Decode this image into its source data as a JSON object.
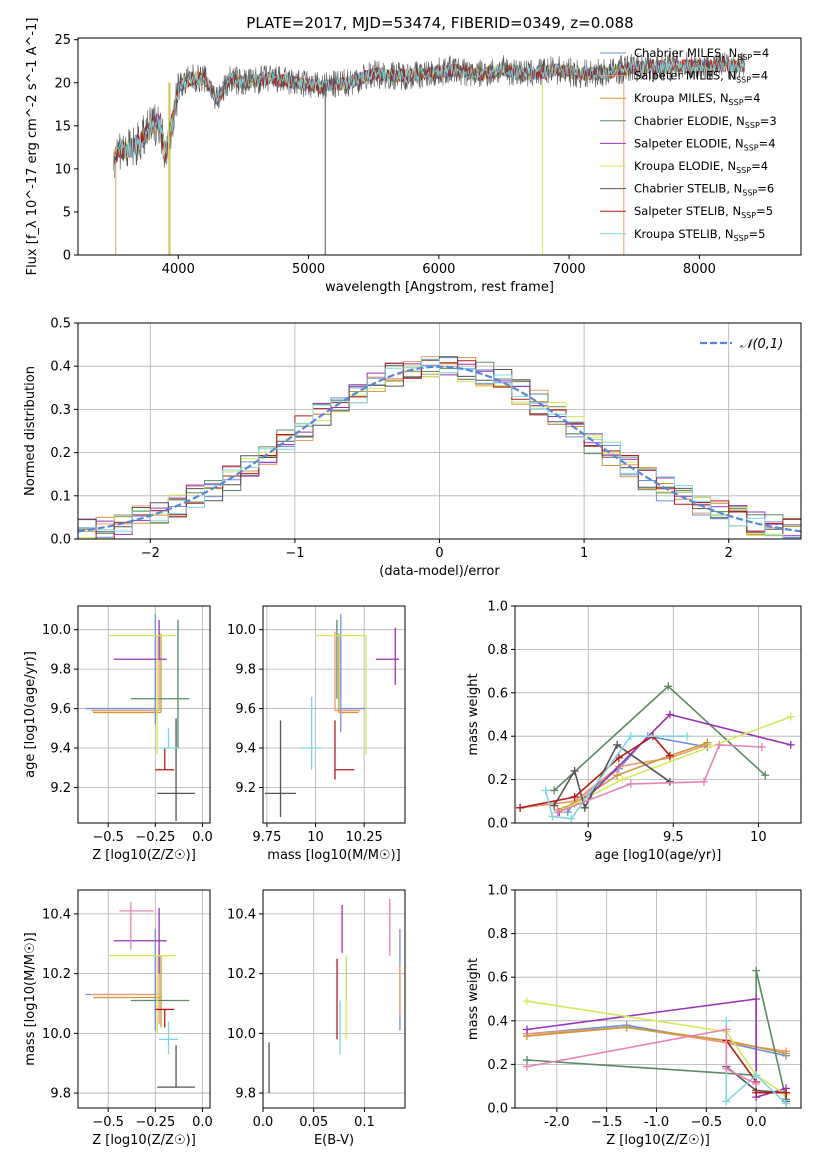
{
  "figure_title": "PLATE=2017, MJD=53474, FIBERID=0349, z=0.088",
  "models": [
    {
      "name": "Chabrier MILES",
      "nssp": "4",
      "color": "#6f8fdc"
    },
    {
      "name": "Salpeter MILES",
      "nssp": "4",
      "color": "#f29a6f"
    },
    {
      "name": "Kroupa MILES",
      "nssp": "4",
      "color": "#c99a3a"
    },
    {
      "name": "Chabrier ELODIE",
      "nssp": "3",
      "color": "#5a8a64"
    },
    {
      "name": "Salpeter ELODIE",
      "nssp": "4",
      "color": "#9b30b8"
    },
    {
      "name": "Kroupa ELODIE",
      "nssp": "4",
      "color": "#d6e85a"
    },
    {
      "name": "Chabrier STELIB",
      "nssp": "6",
      "color": "#555555"
    },
    {
      "name": "Salpeter STELIB",
      "nssp": "5",
      "color": "#b11c1c"
    },
    {
      "name": "Kroupa STELIB",
      "nssp": "5",
      "color": "#7fd6dd"
    }
  ],
  "chart_data": [
    {
      "id": "spectrum",
      "type": "line",
      "xlabel": "wavelength [Angstrom, rest frame]",
      "ylabel": "Flux [f_λ 10^-17 erg cm^-2 s^-1 A^-1]",
      "xlim": [
        3230,
        8780
      ],
      "ylim": [
        0,
        25.2
      ],
      "xticks": [
        4000,
        5000,
        6000,
        7000,
        8000
      ],
      "yticks": [
        0,
        5,
        10,
        15,
        20,
        25
      ],
      "grid": false,
      "legend": "right",
      "series_note": "one spectrum curve per model; values approximated",
      "envelope": {
        "wavelength": [
          3500,
          3550,
          3600,
          3700,
          3800,
          3850,
          3900,
          3950,
          4000,
          4100,
          4200,
          4300,
          4400,
          4500,
          4700,
          4900,
          5100,
          5300,
          5500,
          5700,
          5900,
          6100,
          6300,
          6500,
          6700,
          6900,
          7100,
          7300,
          7500,
          8100
        ],
        "flux": [
          11,
          12.5,
          12,
          13,
          15,
          15.5,
          12,
          15,
          19.5,
          20.5,
          20.5,
          18,
          20.5,
          20,
          20.5,
          20,
          19.5,
          20,
          21,
          20.8,
          21,
          21.5,
          21,
          21.5,
          21,
          21.5,
          21,
          21.2,
          21.8,
          22
        ]
      }
    },
    {
      "id": "residuals",
      "type": "line",
      "xlabel": "(data-model)/error",
      "ylabel": "Normed distribution",
      "xlim": [
        -2.5,
        2.5
      ],
      "ylim": [
        0,
        0.5
      ],
      "xticks": [
        -2,
        -1,
        0,
        1,
        2
      ],
      "yticks": [
        0.0,
        0.1,
        0.2,
        0.3,
        0.4,
        0.5
      ],
      "grid": true,
      "legend": "top-right",
      "reference": {
        "name": "𝒩(0,1)",
        "mean": 0,
        "sigma": 1,
        "color": "#5588d8"
      }
    },
    {
      "id": "age-vs-Z",
      "type": "scatter",
      "xlabel": "Z [log10(Z/Z☉)]",
      "ylabel": "age [log10(age/yr)]",
      "xlim": [
        -0.66,
        0.04
      ],
      "ylim": [
        9.02,
        10.12
      ],
      "xticks": [
        -0.5,
        -0.25,
        0.0
      ],
      "yticks": [
        9.2,
        9.4,
        9.6,
        9.8,
        10.0
      ],
      "grid": true,
      "points": [
        {
          "model": 0,
          "x": -0.25,
          "y": 9.6,
          "xerr": [
            0.37,
            0.0
          ],
          "yerr": [
            0.08,
            0.48
          ]
        },
        {
          "model": 1,
          "x": -0.23,
          "y": 9.59,
          "xerr": [
            0.36,
            0.0
          ],
          "yerr": [
            0.0,
            0.4
          ]
        },
        {
          "model": 2,
          "x": -0.22,
          "y": 9.58,
          "xerr": [
            0.36,
            0.0
          ],
          "yerr": [
            0.0,
            0.4
          ]
        },
        {
          "model": 3,
          "x": -0.13,
          "y": 9.65,
          "xerr": [
            0.25,
            0.06
          ],
          "yerr": [
            0.25,
            0.4
          ]
        },
        {
          "model": 4,
          "x": -0.23,
          "y": 9.85,
          "xerr": [
            0.24,
            0.04
          ],
          "yerr": [
            0.0,
            0.2
          ]
        },
        {
          "model": 5,
          "x": -0.24,
          "y": 9.97,
          "xerr": [
            0.26,
            0.1
          ],
          "yerr": [
            0.6,
            0.0
          ]
        },
        {
          "model": 6,
          "x": -0.14,
          "y": 9.17,
          "xerr": [
            0.1,
            0.1
          ],
          "yerr": [
            0.14,
            0.38
          ]
        },
        {
          "model": 7,
          "x": -0.2,
          "y": 9.29,
          "xerr": [
            0.05,
            0.05
          ],
          "yerr": [
            0.0,
            0.11
          ]
        },
        {
          "model": 8,
          "x": -0.18,
          "y": 9.4,
          "xerr": [
            0.05,
            0.05
          ],
          "yerr": [
            0.0,
            0.1
          ]
        }
      ]
    },
    {
      "id": "age-vs-mass",
      "type": "scatter",
      "xlabel": "mass [log10(M/M☉)]",
      "ylabel": "",
      "xlim": [
        9.73,
        10.46
      ],
      "ylim": [
        9.02,
        10.12
      ],
      "xticks": [
        9.75,
        10.0,
        10.25
      ],
      "yticks": [
        9.2,
        9.4,
        9.6,
        9.8,
        10.0
      ],
      "grid": true,
      "points": [
        {
          "model": 0,
          "x": 10.13,
          "y": 9.6,
          "xerr": [
            0.0,
            0.13
          ],
          "yerr": [
            0.12,
            0.48
          ]
        },
        {
          "model": 1,
          "x": 10.1,
          "y": 9.59,
          "xerr": [
            0.0,
            0.13
          ],
          "yerr": [
            0.0,
            0.4
          ]
        },
        {
          "model": 2,
          "x": 10.12,
          "y": 9.58,
          "xerr": [
            0.0,
            0.1
          ],
          "yerr": [
            0.0,
            0.4
          ]
        },
        {
          "model": 3,
          "x": 10.11,
          "y": 9.65,
          "xerr": [
            0.0,
            0.0
          ],
          "yerr": [
            0.0,
            0.4
          ]
        },
        {
          "model": 4,
          "x": 10.41,
          "y": 9.85,
          "xerr": [
            0.1,
            0.02
          ],
          "yerr": [
            0.13,
            0.16
          ]
        },
        {
          "model": 5,
          "x": 10.26,
          "y": 9.97,
          "xerr": [
            0.26,
            0.0
          ],
          "yerr": [
            0.6,
            0.0
          ]
        },
        {
          "model": 6,
          "x": 9.82,
          "y": 9.17,
          "xerr": [
            0.08,
            0.08
          ],
          "yerr": [
            0.12,
            0.37
          ]
        },
        {
          "model": 7,
          "x": 10.1,
          "y": 9.29,
          "xerr": [
            0.0,
            0.1
          ],
          "yerr": [
            0.05,
            0.25
          ]
        },
        {
          "model": 8,
          "x": 9.98,
          "y": 9.4,
          "xerr": [
            0.06,
            0.05
          ],
          "yerr": [
            0.11,
            0.26
          ]
        }
      ]
    },
    {
      "id": "weight-vs-age",
      "type": "line",
      "xlabel": "age [log10(age/yr)]",
      "ylabel": "mass weight",
      "xlim": [
        8.57,
        10.25
      ],
      "ylim": [
        0,
        1.0
      ],
      "xticks": [
        9.0,
        9.5,
        10.0
      ],
      "yticks": [
        0.0,
        0.2,
        0.4,
        0.6,
        0.8,
        1.0
      ],
      "grid": true,
      "series": [
        {
          "model": 0,
          "x": [
            8.88,
            8.92,
            9.18,
            9.35,
            9.7
          ],
          "y": [
            0.05,
            0.1,
            0.25,
            0.4,
            0.35
          ]
        },
        {
          "model": 1,
          "x": [
            8.6,
            8.92,
            9.18,
            9.48,
            9.7
          ],
          "y": [
            0.07,
            0.1,
            0.26,
            0.3,
            0.36
          ]
        },
        {
          "model": 2,
          "x": [
            8.82,
            8.92,
            9.17,
            9.48,
            9.7
          ],
          "y": [
            0.06,
            0.09,
            0.22,
            0.31,
            0.37
          ]
        },
        {
          "model": 3,
          "x": [
            8.8,
            9.47,
            10.04
          ],
          "y": [
            0.15,
            0.63,
            0.22
          ]
        },
        {
          "model": 4,
          "x": [
            8.83,
            9.0,
            9.48,
            10.19
          ],
          "y": [
            0.05,
            0.12,
            0.5,
            0.36
          ]
        },
        {
          "model": 5,
          "x": [
            8.85,
            9.2,
            10.19
          ],
          "y": [
            0.06,
            0.2,
            0.49
          ]
        },
        {
          "model": 6,
          "x": [
            8.8,
            8.92,
            8.98,
            9.17,
            9.48
          ],
          "y": [
            0.08,
            0.24,
            0.07,
            0.36,
            0.19
          ]
        },
        {
          "model": 7,
          "x": [
            8.6,
            8.92,
            9.18,
            9.38,
            9.48
          ],
          "y": [
            0.07,
            0.12,
            0.3,
            0.4,
            0.31
          ]
        },
        {
          "model": 8,
          "x": [
            8.75,
            8.79,
            8.9,
            9.25,
            9.58
          ],
          "y": [
            0.15,
            0.03,
            0.02,
            0.4,
            0.4
          ]
        },
        {
          "model": 1,
          "x": [
            8.82,
            9.25,
            9.68,
            9.77,
            10.02
          ],
          "y": [
            0.05,
            0.18,
            0.19,
            0.36,
            0.35
          ],
          "colorOverride": "#e583b8"
        }
      ]
    },
    {
      "id": "mass-vs-Z",
      "type": "scatter",
      "xlabel": "Z [log10(Z/Z☉)]",
      "ylabel": "mass [log10(M/M☉)]",
      "xlim": [
        -0.66,
        0.04
      ],
      "ylim": [
        9.75,
        10.48
      ],
      "xticks": [
        -0.5,
        -0.25,
        0.0
      ],
      "yticks": [
        9.8,
        10.0,
        10.2,
        10.4
      ],
      "grid": true,
      "points": [
        {
          "model": 0,
          "x": -0.25,
          "y": 10.13,
          "xerr": [
            0.37,
            0.0
          ],
          "yerr": [
            0.12,
            0.22
          ]
        },
        {
          "model": 1,
          "x": -0.23,
          "y": 10.13,
          "xerr": [
            0.36,
            0.0
          ],
          "yerr": [
            0.1,
            0.15
          ]
        },
        {
          "model": 2,
          "x": -0.22,
          "y": 10.12,
          "xerr": [
            0.36,
            0.0
          ],
          "yerr": [
            0.1,
            0.14
          ]
        },
        {
          "model": 3,
          "x": -0.13,
          "y": 10.11,
          "xerr": [
            0.25,
            0.06
          ],
          "yerr": [
            0.0,
            0.0
          ]
        },
        {
          "model": 4,
          "x": -0.23,
          "y": 10.31,
          "xerr": [
            0.24,
            0.04
          ],
          "yerr": [
            0.11,
            0.11
          ]
        },
        {
          "model": 5,
          "x": -0.24,
          "y": 10.26,
          "xerr": [
            0.26,
            0.1
          ],
          "yerr": [
            0.26,
            0.0
          ]
        },
        {
          "model": 6,
          "x": -0.14,
          "y": 9.82,
          "xerr": [
            0.1,
            0.1
          ],
          "yerr": [
            0.0,
            0.14
          ]
        },
        {
          "model": 7,
          "x": -0.2,
          "y": 10.08,
          "xerr": [
            0.05,
            0.05
          ],
          "yerr": [
            0.06,
            0.0
          ]
        },
        {
          "model": 8,
          "x": -0.18,
          "y": 9.98,
          "xerr": [
            0.05,
            0.05
          ],
          "yerr": [
            0.05,
            0.06
          ]
        },
        {
          "model": 1,
          "x": -0.38,
          "y": 10.41,
          "xerr": [
            0.06,
            0.12
          ],
          "yerr": [
            0.13,
            0.03
          ],
          "colorOverride": "#e583b8"
        }
      ]
    },
    {
      "id": "mass-vs-ebv",
      "type": "scatter",
      "xlabel": "E(B-V)",
      "ylabel": "",
      "xlim": [
        0.0,
        0.14
      ],
      "ylim": [
        9.75,
        10.48
      ],
      "xticks": [
        0.0,
        0.05,
        0.1
      ],
      "yticks": [
        9.8,
        10.0,
        10.2,
        10.4
      ],
      "grid": true,
      "points": [
        {
          "model": 0,
          "x": 0.135,
          "y": 10.13,
          "xerr": [
            0,
            0
          ],
          "yerr": [
            0.12,
            0.22
          ]
        },
        {
          "model": 1,
          "x": 0.135,
          "y": 10.13,
          "xerr": [
            0,
            0
          ],
          "yerr": [
            0.07,
            0.1
          ]
        },
        {
          "model": 2,
          "x": 0.135,
          "y": 10.12,
          "xerr": [
            0,
            0
          ],
          "yerr": [
            0.0,
            0.0
          ]
        },
        {
          "model": 3,
          "x": 0.082,
          "y": 10.11,
          "xerr": [
            0,
            0
          ],
          "yerr": [
            0.0,
            0.14
          ]
        },
        {
          "model": 4,
          "x": 0.078,
          "y": 10.31,
          "xerr": [
            0,
            0
          ],
          "yerr": [
            0.04,
            0.12
          ]
        },
        {
          "model": 5,
          "x": 0.082,
          "y": 10.12,
          "xerr": [
            0,
            0
          ],
          "yerr": [
            0.14,
            0.14
          ]
        },
        {
          "model": 6,
          "x": 0.006,
          "y": 9.82,
          "xerr": [
            0,
            0
          ],
          "yerr": [
            0.02,
            0.15
          ]
        },
        {
          "model": 7,
          "x": 0.073,
          "y": 10.08,
          "xerr": [
            0,
            0
          ],
          "yerr": [
            0.1,
            0.17
          ]
        },
        {
          "model": 8,
          "x": 0.076,
          "y": 9.98,
          "xerr": [
            0,
            0
          ],
          "yerr": [
            0.05,
            0.13
          ]
        },
        {
          "model": 1,
          "x": 0.125,
          "y": 10.4,
          "xerr": [
            0,
            0
          ],
          "yerr": [
            0.14,
            0.05
          ],
          "colorOverride": "#e583b8"
        }
      ]
    },
    {
      "id": "weight-vs-Z",
      "type": "line",
      "xlabel": "Z [log10(Z/Z☉)]",
      "ylabel": "mass weight",
      "xlim": [
        -2.42,
        0.45
      ],
      "ylim": [
        0,
        1.0
      ],
      "xticks": [
        -2.0,
        -1.5,
        -1.0,
        -0.5,
        0.0
      ],
      "yticks": [
        0.0,
        0.2,
        0.4,
        0.6,
        0.8,
        1.0
      ],
      "grid": true,
      "series": [
        {
          "model": 0,
          "x": [
            -2.3,
            -1.3,
            -0.3,
            0.3
          ],
          "y": [
            0.34,
            0.38,
            0.3,
            0.24
          ]
        },
        {
          "model": 1,
          "x": [
            -2.3,
            -1.3,
            -0.3,
            0.3
          ],
          "y": [
            0.34,
            0.37,
            0.3,
            0.26
          ]
        },
        {
          "model": 2,
          "x": [
            -2.3,
            -1.3,
            -0.3,
            0.3
          ],
          "y": [
            0.33,
            0.37,
            0.31,
            0.25
          ]
        },
        {
          "model": 3,
          "x": [
            -2.3,
            0.0,
            0.0,
            0.3
          ],
          "y": [
            0.22,
            0.15,
            0.63,
            0.04
          ]
        },
        {
          "model": 4,
          "x": [
            -2.3,
            0.0,
            0.0,
            0.3
          ],
          "y": [
            0.36,
            0.5,
            0.05,
            0.09
          ]
        },
        {
          "model": 5,
          "x": [
            -2.3,
            -0.3,
            0.0,
            0.3
          ],
          "y": [
            0.49,
            0.35,
            0.15,
            0.06
          ]
        },
        {
          "model": 6,
          "x": [
            -0.3,
            0.0,
            0.3,
            0.3
          ],
          "y": [
            0.19,
            0.08,
            0.07,
            0.03
          ]
        },
        {
          "model": 7,
          "x": [
            -0.3,
            0.0,
            0.0,
            0.3
          ],
          "y": [
            0.31,
            0.12,
            0.07,
            0.07
          ]
        },
        {
          "model": 8,
          "x": [
            -0.3,
            -0.3,
            0.0,
            0.3
          ],
          "y": [
            0.4,
            0.03,
            0.15,
            0.02
          ]
        },
        {
          "model": 1,
          "x": [
            -2.3,
            -0.3,
            -0.3,
            0.0
          ],
          "y": [
            0.19,
            0.36,
            0.18,
            0.11
          ],
          "colorOverride": "#e583b8"
        }
      ]
    }
  ]
}
